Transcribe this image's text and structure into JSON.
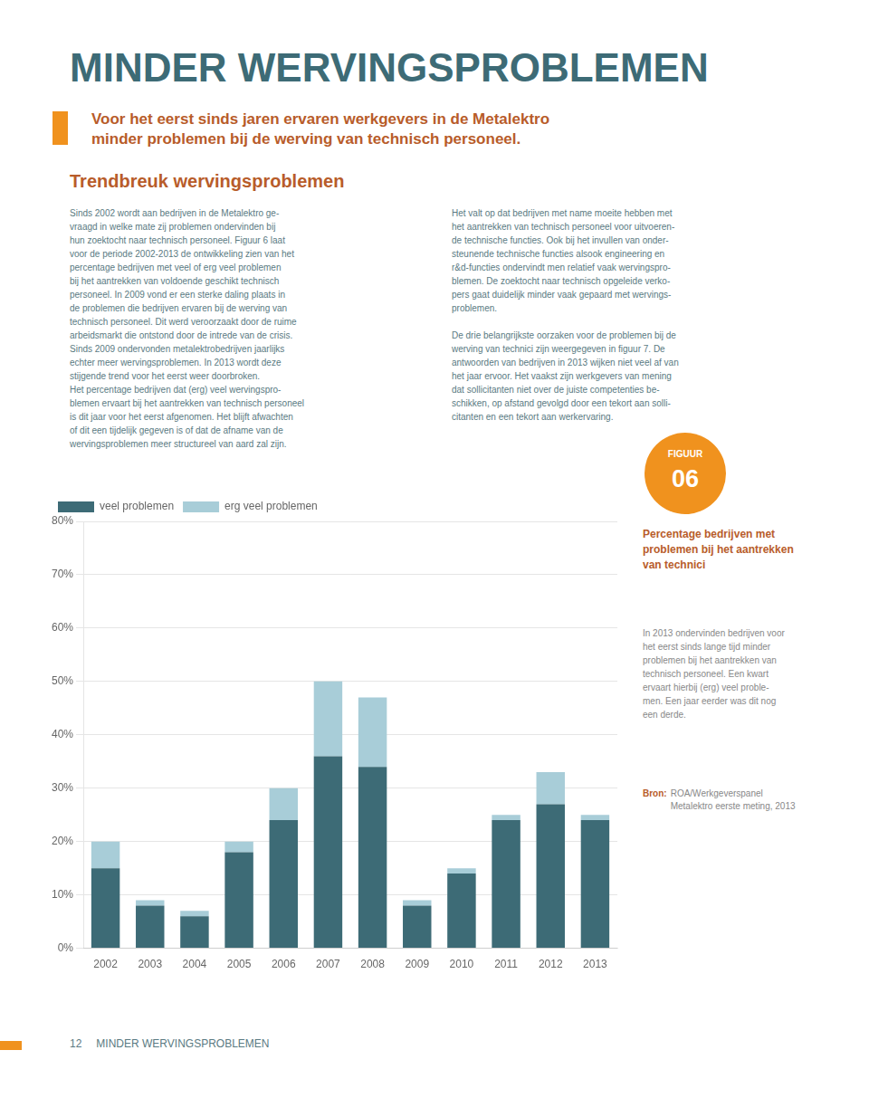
{
  "page_title": "MINDER WERVINGSPROBLEMEN",
  "subtitle": "Voor het eerst sinds jaren ervaren werkgevers in de Metalektro\nminder problemen bij de werving van technisch personeel.",
  "section_title": "Trendbreuk wervingsproblemen",
  "body_columns": [
    "Sinds 2002 wordt aan bedrijven in de Metalektro ge-\nvraagd in welke mate zij problemen ondervinden bij\nhun zoektocht naar technisch personeel. Figuur 6 laat\nvoor de periode 2002-2013 de ontwikkeling zien van het\npercentage bedrijven met veel of erg veel problemen\nbij het aantrekken van voldoende geschikt technisch\npersoneel. In 2009 vond er een sterke daling plaats in\nde problemen die bedrijven ervaren bij de werving van\ntechnisch personeel. Dit werd veroorzaakt door de ruime\narbeidsmarkt die ontstond door de intrede van de crisis.\nSinds 2009 ondervonden metalektrobedrijven jaarlijks\nechter meer wervingsproblemen. In 2013 wordt deze\nstijgende trend voor het eerst weer doorbroken.\nHet percentage bedrijven dat (erg) veel wervingspro-\nblemen ervaart bij het aantrekken van technisch personeel\nis dit jaar voor het eerst afgenomen. Het blijft afwachten\nof dit een tijdelijk gegeven is of dat de afname van de\nwervingsproblemen meer structureel van aard zal zijn.",
    "Het valt op dat bedrijven met name moeite hebben met\nhet aantrekken van technisch personeel voor uitvoeren-\nde technische functies. Ook bij het invullen van onder-\nsteunende technische functies alsook engineering en\nr&d-functies ondervindt men relatief vaak wervingspro-\nblemen. De zoektocht naar technisch opgeleide verko-\npers gaat duidelijk minder vaak gepaard met wervings-\nproblemen.\n\nDe drie belangrijkste oorzaken voor de problemen bij de\nwerving van technici zijn weergegeven in figuur 7. De\nantwoorden van bedrijven in 2013 wijken niet veel af van\nhet jaar ervoor. Het vaakst zijn werkgevers van mening\ndat sollicitanten niet over de juiste competenties be-\nschikken, op afstand gevolgd door een tekort aan solli-\ncitanten en een tekort aan werkervaring."
  ],
  "footer": [
    "12",
    "MINDER WERVINGSPROBLEMEN"
  ],
  "chart_data": {
    "type": "bar",
    "title": "Percentage bedrijven met\nproblemen bij het aantrekken\nvan technici",
    "subtitle": "In 2013 ondervinden bedrijven voor\nhet eerst sinds lange tijd minder\nproblemen bij het aantrekken van\ntechnisch personeel. Een kwart\nervaart hierbij (erg) veel proble-\nmen. Een jaar eerder was dit nog\neen derde.",
    "annotations": [
      "FIGUUR",
      "06",
      "Bron:",
      "ROA/Werkgeverspanel\nMetalektro eerste meting, 2013"
    ],
    "categories": [
      "2002",
      "2003",
      "2004",
      "2005",
      "2006",
      "2007",
      "2008",
      "2009",
      "2010",
      "2011",
      "2012",
      "2013"
    ],
    "series": [
      {
        "name": "veel problemen",
        "color": "#3d6b76",
        "values": [
          15,
          8,
          6,
          18,
          24,
          36,
          34,
          8,
          14,
          24,
          27,
          24
        ]
      },
      {
        "name": "erg veel problemen",
        "color": "#a8cdd8",
        "values": [
          5,
          1,
          1,
          2,
          6,
          14,
          13,
          1,
          1,
          1,
          6,
          1
        ]
      }
    ],
    "stacked": true,
    "ylim": [
      0,
      80
    ],
    "yticks": [
      {
        "value": 0,
        "label": "0%"
      },
      {
        "value": 10,
        "label": "10%"
      },
      {
        "value": 20,
        "label": "20%"
      },
      {
        "value": 30,
        "label": "30%"
      },
      {
        "value": 40,
        "label": "40%"
      },
      {
        "value": 50,
        "label": "50%"
      },
      {
        "value": 60,
        "label": "60%"
      },
      {
        "value": 70,
        "label": "70%"
      },
      {
        "value": 80,
        "label": "80%"
      }
    ],
    "grid": true,
    "legend": "top"
  }
}
